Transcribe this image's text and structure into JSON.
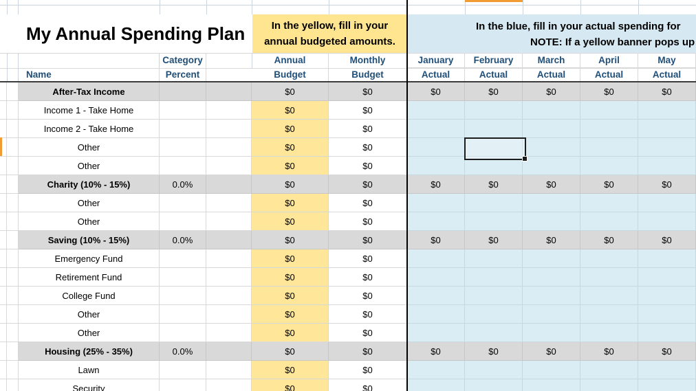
{
  "sheet": {
    "title": "My Annual Spending Plan"
  },
  "banners": {
    "yellow_line1": "In the yellow, fill in your",
    "yellow_line2": "annual budgeted amounts.",
    "blue_line1": "In the blue, fill in your actual spending for",
    "blue_line2": "NOTE: If a yellow banner pops up"
  },
  "headers": {
    "name": "Name",
    "category_top": "Category",
    "category_bottom": "Percent",
    "annual_top": "Annual",
    "annual_bottom": "Budget",
    "monthly_top": "Monthly",
    "monthly_bottom": "Budget"
  },
  "months": [
    {
      "label": "January",
      "sub": "Actual"
    },
    {
      "label": "February",
      "sub": "Actual"
    },
    {
      "label": "March",
      "sub": "Actual"
    },
    {
      "label": "April",
      "sub": "Actual"
    },
    {
      "label": "May",
      "sub": "Actual"
    }
  ],
  "rows": [
    {
      "type": "section",
      "name": "After-Tax Income",
      "percent": "",
      "annual": "$0",
      "monthly": "$0",
      "months": [
        "$0",
        "$0",
        "$0",
        "$0",
        "$0"
      ]
    },
    {
      "type": "item",
      "name": "Income 1 - Take Home",
      "annual": "$0",
      "monthly": "$0"
    },
    {
      "type": "item",
      "name": "Income 2 - Take Home",
      "annual": "$0",
      "monthly": "$0"
    },
    {
      "type": "item",
      "name": "Other",
      "annual": "$0",
      "monthly": "$0"
    },
    {
      "type": "item",
      "name": "Other",
      "annual": "$0",
      "monthly": "$0"
    },
    {
      "type": "section",
      "name": "Charity  (10% - 15%)",
      "percent": "0.0%",
      "annual": "$0",
      "monthly": "$0",
      "months": [
        "$0",
        "$0",
        "$0",
        "$0",
        "$0"
      ],
      "indicator": true
    },
    {
      "type": "item",
      "name": "Other",
      "annual": "$0",
      "monthly": "$0"
    },
    {
      "type": "item",
      "name": "Other",
      "annual": "$0",
      "monthly": "$0"
    },
    {
      "type": "section",
      "name": "Saving  (10% - 15%)",
      "percent": "0.0%",
      "annual": "$0",
      "monthly": "$0",
      "months": [
        "$0",
        "$0",
        "$0",
        "$0",
        "$0"
      ],
      "indicator": true
    },
    {
      "type": "item",
      "name": "Emergency Fund",
      "annual": "$0",
      "monthly": "$0"
    },
    {
      "type": "item",
      "name": "Retirement Fund",
      "annual": "$0",
      "monthly": "$0"
    },
    {
      "type": "item",
      "name": "College Fund",
      "annual": "$0",
      "monthly": "$0"
    },
    {
      "type": "item",
      "name": "Other",
      "annual": "$0",
      "monthly": "$0"
    },
    {
      "type": "item",
      "name": "Other",
      "annual": "$0",
      "monthly": "$0"
    },
    {
      "type": "section",
      "name": "Housing  (25% - 35%)",
      "percent": "0.0%",
      "annual": "$0",
      "monthly": "$0",
      "months": [
        "$0",
        "$0",
        "$0",
        "$0",
        "$0"
      ],
      "indicator": true
    },
    {
      "type": "item",
      "name": "Lawn",
      "annual": "$0",
      "monthly": "$0"
    },
    {
      "type": "item",
      "name": "Security",
      "annual": "$0",
      "monthly": "$0"
    }
  ],
  "selection": {
    "row_index": 3,
    "month_index": 1
  },
  "colors": {
    "section_fill": "#D9D9D9",
    "input_fill": "#FFE699",
    "actual_fill": "#DAECF4",
    "yellow_banner": "#FFE58F",
    "blue_banner": "#D6E9F2",
    "header_text": "#1F4E78",
    "highlight_orange": "#F09C33",
    "indicator_green": "#1E7A1E",
    "gridline": "#D8D8D8",
    "gridline_blue": "#C6D8E0",
    "gridline_top": "#CBD4DE"
  }
}
